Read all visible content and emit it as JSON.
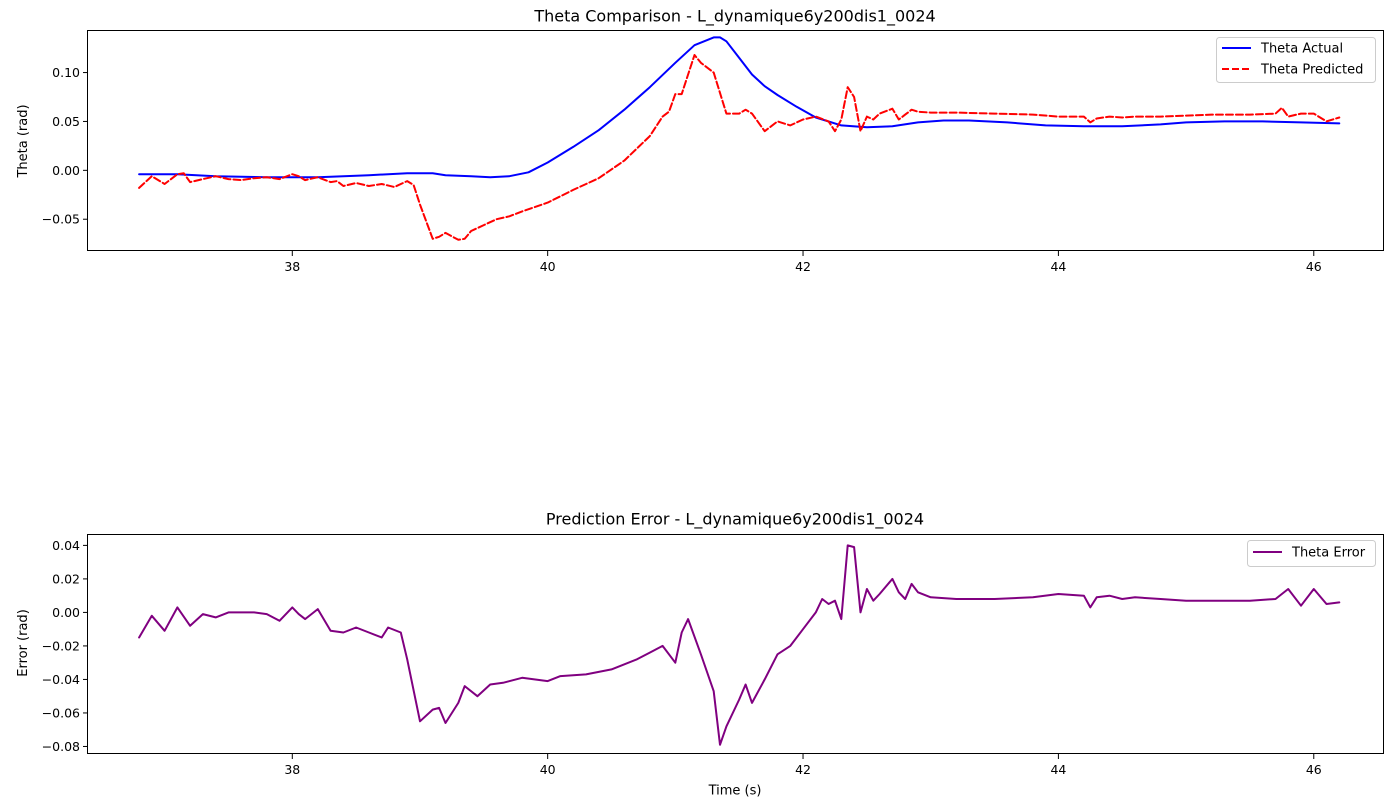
{
  "colors": {
    "theta_actual": "#0000ff",
    "theta_predicted": "#ff0000",
    "theta_error": "#800080",
    "axes": "#000000",
    "background": "#ffffff"
  },
  "chart_data": [
    {
      "type": "line",
      "title": "Theta Comparison - L_dynamique6y200dis1_0024",
      "xlabel": "",
      "ylabel": "Theta (rad)",
      "xlim": [
        36.4,
        46.55
      ],
      "ylim": [
        -0.0825,
        0.1425
      ],
      "xticks": [
        38,
        40,
        42,
        44,
        46
      ],
      "yticks": [
        -0.05,
        0.0,
        0.05,
        0.1
      ],
      "xtick_labels": [
        "38",
        "40",
        "42",
        "44",
        "46"
      ],
      "ytick_labels": [
        "−0.05",
        "0.00",
        "0.05",
        "0.10"
      ],
      "grid": false,
      "legend_position": "upper right",
      "series": [
        {
          "name": "Theta Actual",
          "style": "solid",
          "color": "#0000ff",
          "x": [
            36.8,
            37.1,
            37.4,
            37.8,
            38.2,
            38.6,
            38.9,
            39.1,
            39.2,
            39.4,
            39.55,
            39.7,
            39.85,
            40.0,
            40.2,
            40.4,
            40.6,
            40.8,
            41.0,
            41.15,
            41.3,
            41.35,
            41.4,
            41.5,
            41.6,
            41.7,
            41.8,
            41.95,
            42.1,
            42.3,
            42.5,
            42.7,
            42.9,
            43.1,
            43.3,
            43.6,
            43.9,
            44.2,
            44.5,
            44.8,
            45.0,
            45.3,
            45.6,
            45.9,
            46.2
          ],
          "y": [
            -0.004,
            -0.004,
            -0.006,
            -0.007,
            -0.007,
            -0.005,
            -0.003,
            -0.003,
            -0.005,
            -0.006,
            -0.007,
            -0.006,
            -0.002,
            0.008,
            0.024,
            0.041,
            0.062,
            0.085,
            0.11,
            0.128,
            0.136,
            0.136,
            0.132,
            0.115,
            0.098,
            0.086,
            0.077,
            0.065,
            0.054,
            0.046,
            0.044,
            0.045,
            0.049,
            0.051,
            0.051,
            0.049,
            0.046,
            0.045,
            0.045,
            0.047,
            0.049,
            0.05,
            0.05,
            0.049,
            0.048
          ]
        },
        {
          "name": "Theta Predicted",
          "style": "dashed",
          "color": "#ff0000",
          "x": [
            36.8,
            36.9,
            37.0,
            37.1,
            37.15,
            37.2,
            37.3,
            37.4,
            37.5,
            37.6,
            37.7,
            37.8,
            37.9,
            38.0,
            38.05,
            38.1,
            38.2,
            38.3,
            38.35,
            38.4,
            38.5,
            38.6,
            38.7,
            38.8,
            38.9,
            38.95,
            39.0,
            39.1,
            39.15,
            39.2,
            39.3,
            39.35,
            39.4,
            39.5,
            39.6,
            39.7,
            39.8,
            40.0,
            40.2,
            40.4,
            40.6,
            40.8,
            40.9,
            40.95,
            41.0,
            41.05,
            41.1,
            41.15,
            41.2,
            41.3,
            41.4,
            41.5,
            41.55,
            41.6,
            41.7,
            41.8,
            41.9,
            42.0,
            42.1,
            42.2,
            42.25,
            42.3,
            42.35,
            42.4,
            42.45,
            42.5,
            42.55,
            42.6,
            42.7,
            42.75,
            42.8,
            42.85,
            42.9,
            43.0,
            43.2,
            43.5,
            43.8,
            44.0,
            44.2,
            44.25,
            44.3,
            44.4,
            44.5,
            44.6,
            44.8,
            45.0,
            45.2,
            45.5,
            45.7,
            45.75,
            45.8,
            45.9,
            46.0,
            46.1,
            46.2
          ],
          "y": [
            -0.018,
            -0.006,
            -0.014,
            -0.004,
            -0.003,
            -0.012,
            -0.009,
            -0.006,
            -0.009,
            -0.01,
            -0.008,
            -0.007,
            -0.009,
            -0.004,
            -0.006,
            -0.01,
            -0.007,
            -0.012,
            -0.011,
            -0.016,
            -0.013,
            -0.016,
            -0.014,
            -0.017,
            -0.011,
            -0.015,
            -0.035,
            -0.07,
            -0.068,
            -0.064,
            -0.071,
            -0.07,
            -0.062,
            -0.056,
            -0.05,
            -0.047,
            -0.042,
            -0.033,
            -0.02,
            -0.008,
            0.01,
            0.035,
            0.055,
            0.06,
            0.078,
            0.078,
            0.098,
            0.118,
            0.11,
            0.1,
            0.058,
            0.058,
            0.062,
            0.058,
            0.04,
            0.05,
            0.046,
            0.052,
            0.055,
            0.05,
            0.04,
            0.052,
            0.085,
            0.075,
            0.04,
            0.055,
            0.052,
            0.058,
            0.063,
            0.052,
            0.057,
            0.062,
            0.06,
            0.059,
            0.059,
            0.058,
            0.057,
            0.055,
            0.055,
            0.049,
            0.053,
            0.055,
            0.054,
            0.055,
            0.055,
            0.056,
            0.057,
            0.057,
            0.058,
            0.064,
            0.055,
            0.058,
            0.058,
            0.05,
            0.054
          ]
        }
      ]
    },
    {
      "type": "line",
      "title": "Prediction Error - L_dynamique6y200dis1_0024",
      "xlabel": "Time (s)",
      "ylabel": "Error (rad)",
      "xlim": [
        36.4,
        46.55
      ],
      "ylim": [
        -0.0845,
        0.0462
      ],
      "xticks": [
        38,
        40,
        42,
        44,
        46
      ],
      "yticks": [
        -0.08,
        -0.06,
        -0.04,
        -0.02,
        0.0,
        0.02,
        0.04
      ],
      "xtick_labels": [
        "38",
        "40",
        "42",
        "44",
        "46"
      ],
      "ytick_labels": [
        "−0.08",
        "−0.06",
        "−0.04",
        "−0.02",
        "0.00",
        "0.02",
        "0.04"
      ],
      "grid": false,
      "legend_position": "upper right",
      "series": [
        {
          "name": "Theta Error",
          "style": "solid",
          "color": "#800080",
          "x": [
            36.8,
            36.9,
            37.0,
            37.1,
            37.2,
            37.3,
            37.4,
            37.5,
            37.6,
            37.7,
            37.8,
            37.9,
            38.0,
            38.05,
            38.1,
            38.2,
            38.3,
            38.4,
            38.5,
            38.6,
            38.7,
            38.75,
            38.85,
            38.9,
            39.0,
            39.1,
            39.15,
            39.2,
            39.3,
            39.35,
            39.45,
            39.55,
            39.65,
            39.8,
            40.0,
            40.1,
            40.3,
            40.5,
            40.7,
            40.8,
            40.9,
            41.0,
            41.05,
            41.1,
            41.2,
            41.3,
            41.35,
            41.4,
            41.5,
            41.55,
            41.6,
            41.7,
            41.8,
            41.9,
            42.0,
            42.1,
            42.15,
            42.2,
            42.25,
            42.3,
            42.35,
            42.4,
            42.45,
            42.5,
            42.55,
            42.6,
            42.7,
            42.75,
            42.8,
            42.85,
            42.9,
            43.0,
            43.2,
            43.5,
            43.8,
            44.0,
            44.2,
            44.25,
            44.3,
            44.4,
            44.5,
            44.6,
            44.8,
            45.0,
            45.2,
            45.5,
            45.7,
            45.8,
            45.9,
            46.0,
            46.1,
            46.2
          ],
          "y": [
            -0.015,
            -0.002,
            -0.011,
            0.003,
            -0.008,
            -0.001,
            -0.003,
            0.0,
            0.0,
            0.0,
            -0.001,
            -0.005,
            0.003,
            -0.001,
            -0.004,
            0.002,
            -0.011,
            -0.012,
            -0.009,
            -0.012,
            -0.015,
            -0.009,
            -0.012,
            -0.028,
            -0.065,
            -0.058,
            -0.057,
            -0.066,
            -0.054,
            -0.044,
            -0.05,
            -0.043,
            -0.042,
            -0.039,
            -0.041,
            -0.038,
            -0.037,
            -0.034,
            -0.028,
            -0.024,
            -0.02,
            -0.03,
            -0.012,
            -0.004,
            -0.025,
            -0.047,
            -0.079,
            -0.068,
            -0.052,
            -0.043,
            -0.054,
            -0.04,
            -0.025,
            -0.02,
            -0.01,
            0.0,
            0.008,
            0.005,
            0.007,
            -0.004,
            0.04,
            0.039,
            0.0,
            0.014,
            0.007,
            0.011,
            0.02,
            0.012,
            0.008,
            0.017,
            0.012,
            0.009,
            0.008,
            0.008,
            0.009,
            0.011,
            0.01,
            0.003,
            0.009,
            0.01,
            0.008,
            0.009,
            0.008,
            0.007,
            0.007,
            0.007,
            0.008,
            0.014,
            0.004,
            0.014,
            0.005,
            0.006
          ]
        }
      ]
    }
  ]
}
